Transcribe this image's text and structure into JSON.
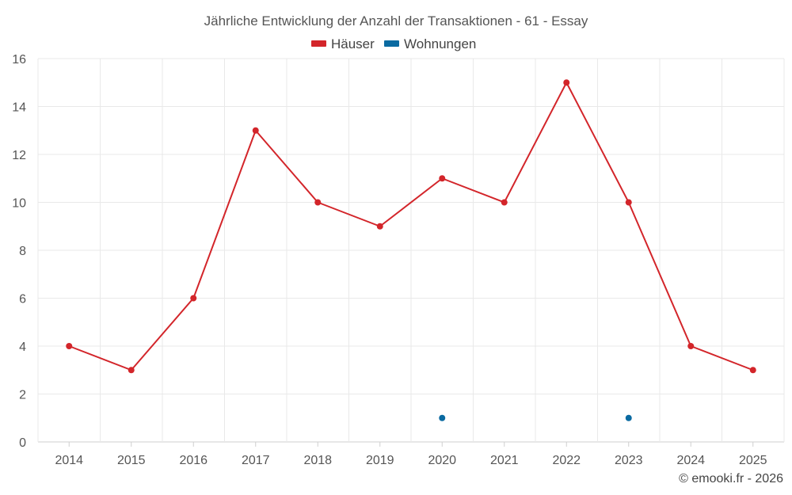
{
  "chart_data": {
    "type": "line",
    "title": "Jährliche Entwicklung der Anzahl der Transaktionen - 61 - Essay",
    "categories": [
      "2014",
      "2015",
      "2016",
      "2017",
      "2018",
      "2019",
      "2020",
      "2021",
      "2022",
      "2023",
      "2024",
      "2025"
    ],
    "series": [
      {
        "name": "Häuser",
        "color": "#d3252a",
        "values": [
          4,
          3,
          6,
          13,
          10,
          9,
          11,
          10,
          15,
          10,
          4,
          3
        ]
      },
      {
        "name": "Wohnungen",
        "color": "#0a6aa1",
        "values": [
          null,
          null,
          null,
          null,
          null,
          null,
          1,
          null,
          null,
          1,
          null,
          null
        ]
      }
    ],
    "ylim": [
      0,
      16
    ],
    "yticks": [
      0,
      2,
      4,
      6,
      8,
      10,
      12,
      14,
      16
    ],
    "xlabel": "",
    "ylabel": "",
    "grid": true,
    "legend_position": "top-center"
  },
  "credit": "© emooki.fr - 2026"
}
